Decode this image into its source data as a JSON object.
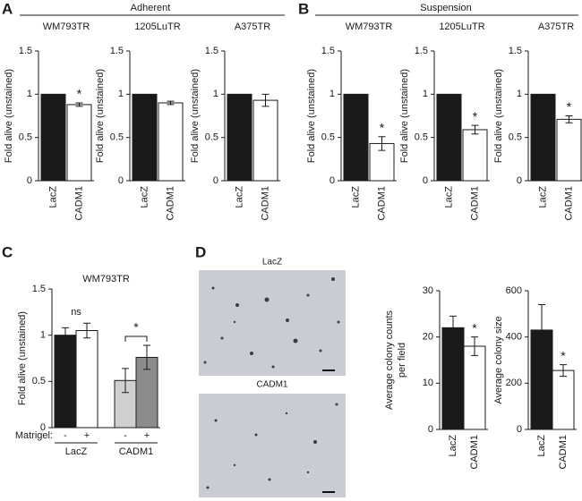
{
  "figure": {
    "panel_labels": [
      "A",
      "B",
      "C",
      "D"
    ],
    "condition_headers": [
      "Adherent",
      "Suspension"
    ],
    "image_labels": [
      "LacZ",
      "CADM1"
    ]
  },
  "chart_data": [
    {
      "type": "bar",
      "title": "WM793TR",
      "y_label": "Fold alive (unstained)",
      "categories": [
        "LacZ",
        "CADM1"
      ],
      "values": [
        1,
        0.88
      ],
      "errors": [
        null,
        0.02
      ],
      "significance": [
        null,
        "*"
      ],
      "colors": [
        "#1a1a1a",
        "#ffffff"
      ],
      "ylim": [
        0,
        1.5
      ],
      "yticks": [
        0,
        0.5,
        1,
        1.5
      ]
    },
    {
      "type": "bar",
      "title": "1205LuTR",
      "y_label": "Fold alive (unstained)",
      "categories": [
        "LacZ",
        "CADM1"
      ],
      "values": [
        1,
        0.9
      ],
      "errors": [
        null,
        0.02
      ],
      "colors": [
        "#1a1a1a",
        "#ffffff"
      ],
      "ylim": [
        0,
        1.5
      ],
      "yticks": [
        0,
        0.5,
        1,
        1.5
      ]
    },
    {
      "type": "bar",
      "title": "A375TR",
      "y_label": "Fold alive (unstained)",
      "categories": [
        "LacZ",
        "CADM1"
      ],
      "values": [
        1,
        0.93
      ],
      "errors": [
        null,
        0.07
      ],
      "colors": [
        "#1a1a1a",
        "#ffffff"
      ],
      "ylim": [
        0,
        1.5
      ],
      "yticks": [
        0,
        0.5,
        1,
        1.5
      ]
    },
    {
      "type": "bar",
      "title": "WM793TR",
      "y_label": "Fold alive (unstained)",
      "categories": [
        "LacZ",
        "CADM1"
      ],
      "values": [
        1,
        0.43
      ],
      "errors": [
        null,
        0.08
      ],
      "significance": [
        null,
        "*"
      ],
      "colors": [
        "#1a1a1a",
        "#ffffff"
      ],
      "ylim": [
        0,
        1.5
      ],
      "yticks": [
        0,
        0.5,
        1,
        1.5
      ]
    },
    {
      "type": "bar",
      "title": "1205LuTR",
      "y_label": "Fold alive (unstained)",
      "categories": [
        "LacZ",
        "CADM1"
      ],
      "values": [
        1,
        0.59
      ],
      "errors": [
        null,
        0.05
      ],
      "significance": [
        null,
        "*"
      ],
      "colors": [
        "#1a1a1a",
        "#ffffff"
      ],
      "ylim": [
        0,
        1.5
      ],
      "yticks": [
        0,
        0.5,
        1,
        1.5
      ]
    },
    {
      "type": "bar",
      "title": "A375TR",
      "y_label": "Fold alive (unstained)",
      "categories": [
        "LacZ",
        "CADM1"
      ],
      "values": [
        1,
        0.71
      ],
      "errors": [
        null,
        0.04
      ],
      "significance": [
        null,
        "*"
      ],
      "colors": [
        "#1a1a1a",
        "#ffffff"
      ],
      "ylim": [
        0,
        1.5
      ],
      "yticks": [
        0,
        0.5,
        1,
        1.5
      ]
    },
    {
      "type": "bar",
      "title": "WM793TR",
      "y_label": "Fold alive (unstained)",
      "category_axis_label": "Matrigel:",
      "categories": [
        "-",
        "+",
        "-",
        "+"
      ],
      "groups": [
        "LacZ",
        "CADM1"
      ],
      "group_annotations": [
        "ns",
        "*"
      ],
      "group_brackets": [
        false,
        true
      ],
      "values": [
        1,
        1.05,
        0.51,
        0.76
      ],
      "errors": [
        0.08,
        0.08,
        0.13,
        0.13
      ],
      "colors": [
        "#1a1a1a",
        "#ffffff",
        "#d0d0d0",
        "#8c8c8c"
      ],
      "ylim": [
        0,
        1.5
      ],
      "yticks": [
        0,
        0.5,
        1,
        1.5
      ]
    },
    {
      "type": "bar",
      "y_label": [
        "Average colony counts",
        "per field"
      ],
      "categories": [
        "LacZ",
        "CADM1"
      ],
      "values": [
        22,
        18
      ],
      "errors": [
        2.5,
        2
      ],
      "significance": [
        null,
        "*"
      ],
      "colors": [
        "#1a1a1a",
        "#ffffff"
      ],
      "ylim": [
        0,
        30
      ],
      "yticks": [
        0,
        10,
        20,
        30
      ]
    },
    {
      "type": "bar",
      "y_label": "Average colony size",
      "categories": [
        "LacZ",
        "CADM1"
      ],
      "values": [
        430,
        255
      ],
      "errors": [
        110,
        25
      ],
      "significance": [
        null,
        "*"
      ],
      "colors": [
        "#1a1a1a",
        "#ffffff"
      ],
      "ylim": [
        0,
        600
      ],
      "yticks": [
        0,
        200,
        400,
        600
      ]
    }
  ]
}
